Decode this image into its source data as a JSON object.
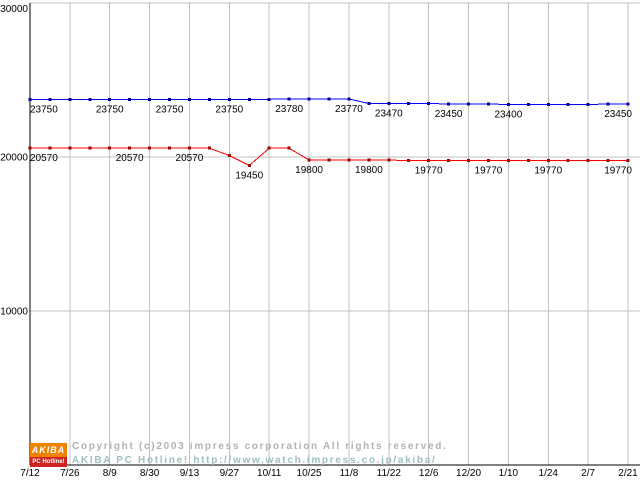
{
  "chart_data": {
    "type": "line",
    "title": "",
    "xlabel": "",
    "ylabel": "",
    "ylim": [
      0,
      30000
    ],
    "grid": true,
    "grid_color": "#c0c0c0",
    "axis_color": "#000000",
    "legend": "none",
    "points_per_tick_interval": 2,
    "x_tick_labels": [
      "7/12",
      "7/26",
      "8/9",
      "8/30",
      "9/13",
      "9/27",
      "10/11",
      "10/25",
      "11/8",
      "11/22",
      "12/6",
      "12/20",
      "1/10",
      "1/24",
      "2/7",
      "2/21"
    ],
    "y_ticks": [
      {
        "label": "30000",
        "value": 30000
      },
      {
        "label": "20000",
        "value": 20000
      },
      {
        "label": "10000",
        "value": 10000
      }
    ],
    "series": [
      {
        "name": "blue-series",
        "color": "#0000ff",
        "marker_color": "#000099",
        "values": [
          23750,
          23750,
          23750,
          23750,
          23750,
          23750,
          23750,
          23750,
          23750,
          23750,
          23750,
          23750,
          23750,
          23780,
          23780,
          23770,
          23770,
          23470,
          23470,
          23470,
          23470,
          23450,
          23450,
          23450,
          23400,
          23400,
          23400,
          23400,
          23400,
          23450,
          23450
        ],
        "point_labels": [
          {
            "week": 0,
            "text": "23750"
          },
          {
            "week": 4,
            "text": "23750"
          },
          {
            "week": 7,
            "text": "23750"
          },
          {
            "week": 10,
            "text": "23750"
          },
          {
            "week": 13,
            "text": "23780"
          },
          {
            "week": 16,
            "text": "23770"
          },
          {
            "week": 18,
            "text": "23470"
          },
          {
            "week": 21,
            "text": "23450"
          },
          {
            "week": 24,
            "text": "23400"
          },
          {
            "week": 30,
            "text": "23450"
          }
        ]
      },
      {
        "name": "red-series",
        "color": "#ff0000",
        "marker_color": "#990000",
        "values": [
          20570,
          20570,
          20570,
          20570,
          20570,
          20570,
          20570,
          20570,
          20570,
          20570,
          20100,
          19450,
          20570,
          20570,
          19800,
          19800,
          19800,
          19800,
          19800,
          19770,
          19770,
          19770,
          19770,
          19770,
          19770,
          19770,
          19770,
          19770,
          19770,
          19770,
          19770
        ],
        "point_labels": [
          {
            "week": 0,
            "text": "20570"
          },
          {
            "week": 5,
            "text": "20570"
          },
          {
            "week": 8,
            "text": "20570"
          },
          {
            "week": 11,
            "text": "19450"
          },
          {
            "week": 14,
            "text": "19800"
          },
          {
            "week": 17,
            "text": "19800"
          },
          {
            "week": 20,
            "text": "19770"
          },
          {
            "week": 23,
            "text": "19770"
          },
          {
            "week": 26,
            "text": "19770"
          },
          {
            "week": 30,
            "text": "19770"
          }
        ]
      }
    ]
  },
  "footer": {
    "line1": "Copyright (c)2003 impress corporation All rights reserved.",
    "line2": "AKIBA PC Hotline!  http://www.watch.impress.co.jp/akiba/",
    "line1_color": "#b2b2b2",
    "line2_color": "#9fbfbf"
  },
  "logo": {
    "top": "AKIBA",
    "bottom": "PC Hotline!",
    "top_bg": "#ef8200",
    "bottom_bg": "#cc2222",
    "text_color": "#ffffff"
  }
}
